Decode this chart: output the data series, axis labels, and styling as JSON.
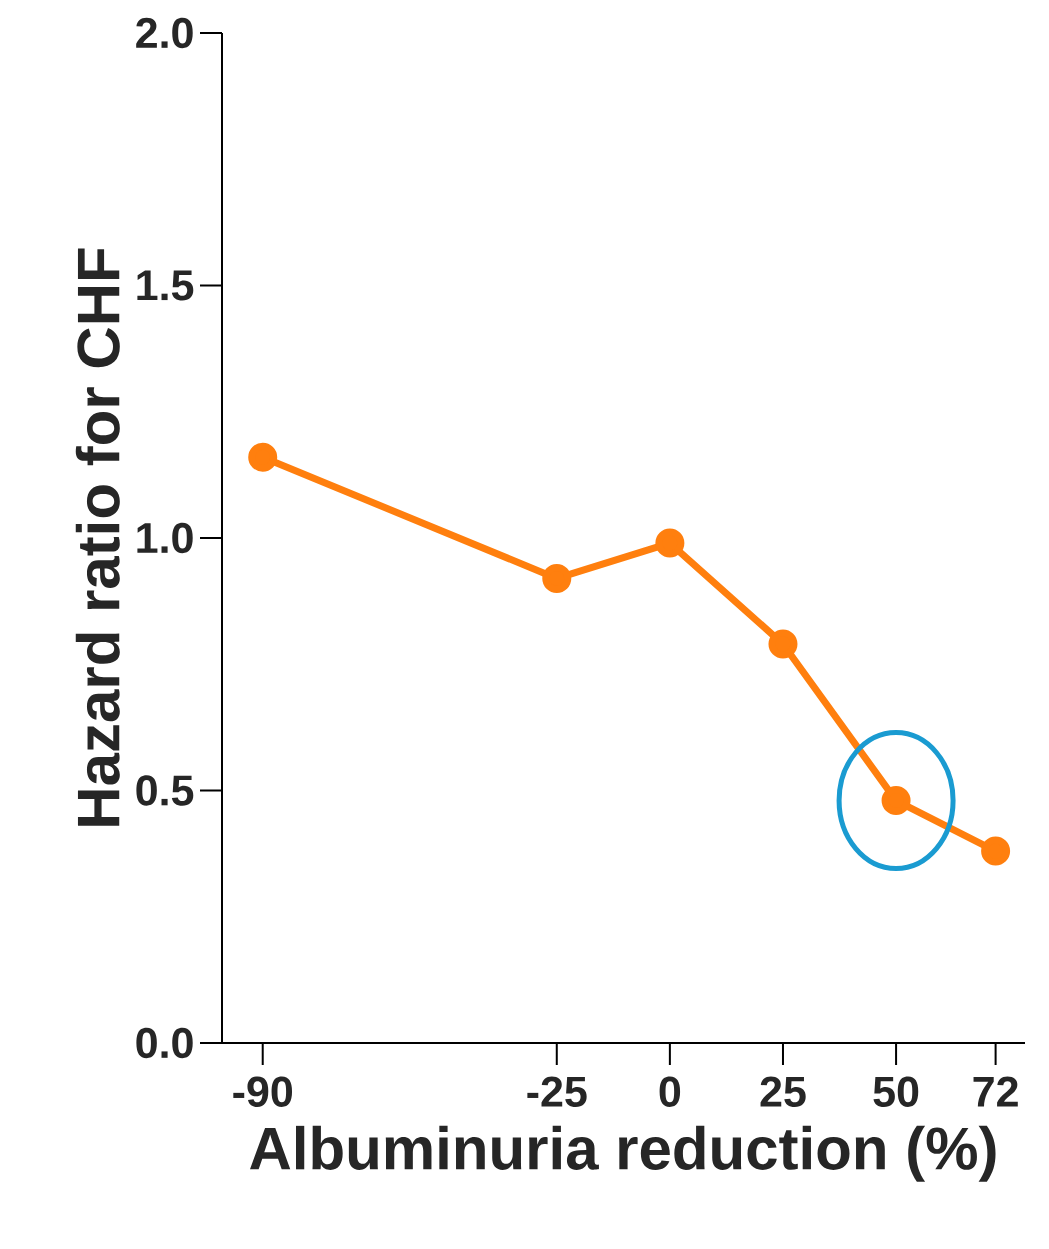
{
  "chart_data": {
    "type": "line",
    "xlabel": "Albuminuria reduction (%)",
    "ylabel": "Hazard ratio for CHF",
    "x": [
      -90,
      -25,
      0,
      25,
      50,
      72
    ],
    "series": [
      {
        "color": "#ff7f0e",
        "values": [
          1.16,
          0.92,
          0.99,
          0.79,
          0.48,
          0.38
        ]
      }
    ],
    "xlim": [
      -99,
      78.5
    ],
    "xticks": [
      -90,
      -25,
      0,
      25,
      50,
      72
    ],
    "ylim": [
      0,
      2
    ],
    "yticks": [
      {
        "value": 0,
        "label": "0.0"
      },
      {
        "value": 0.5,
        "label": "0.5"
      },
      {
        "value": 1,
        "label": "1.0"
      },
      {
        "value": 1.5,
        "label": "1.5"
      },
      {
        "value": 2,
        "label": "2.0"
      }
    ],
    "marker": "circle",
    "line_style": "solid"
  }
}
